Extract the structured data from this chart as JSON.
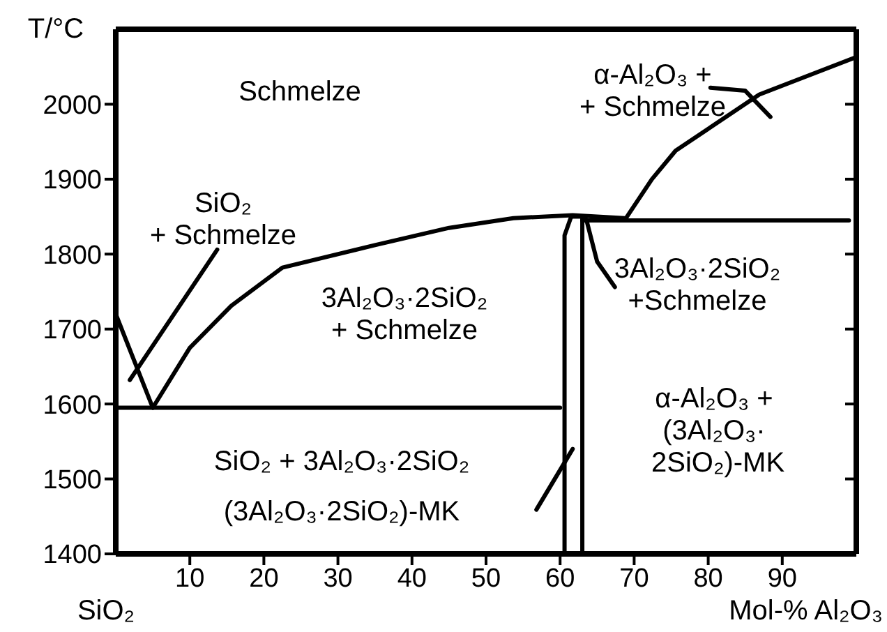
{
  "chart_data": {
    "type": "line",
    "ylabel": "T/°C",
    "xlabel": "Mol-%  Al₂O₃",
    "xlim": [
      0,
      100
    ],
    "ylim": [
      1400,
      2100
    ],
    "xticks": [
      10,
      20,
      30,
      40,
      50,
      60,
      70,
      80,
      90
    ],
    "yticks": [
      1400,
      1500,
      1600,
      1700,
      1800,
      1900,
      2000
    ],
    "marker": "none",
    "line_style": "solid",
    "annotations": [
      "Schmelze",
      "SiO₂\n+ Schmelze",
      "α-Al₂O₃ +\n+ Schmelze",
      "3Al₂O₃·2SiO₂\n+ Schmelze",
      "3Al₂O₃·2SiO₂\n+Schmelze",
      "α-Al₂O₃ +\n(3Al₂O₃·\n 2SiO₂)-MK",
      "SiO₂ + 3Al₂O₃·2SiO₂",
      "(3Al₂O₃·2SiO₂)-MK",
      "SiO₂"
    ],
    "series": [
      {
        "color": "#000000",
        "x": [
          0,
          5
        ],
        "values": [
          1720,
          1595
        ]
      },
      {
        "color": "#000000",
        "x": [
          5,
          10,
          15.6,
          22.5,
          35,
          45,
          53.7,
          61.7,
          68.7
        ],
        "values": [
          1595,
          1675,
          1731,
          1782,
          1812,
          1835,
          1848,
          1852,
          1848
        ]
      },
      {
        "color": "#000000",
        "x": [
          68.7,
          72.4,
          75.6,
          86.9,
          100
        ],
        "values": [
          1845,
          1900,
          1938,
          2013,
          2063
        ]
      },
      {
        "color": "#000000",
        "x": [
          63,
          99
        ],
        "values": [
          1845,
          1845
        ]
      },
      {
        "color": "#000000",
        "x": [
          0,
          60
        ],
        "values": [
          1595,
          1595
        ]
      },
      {
        "color": "#000000",
        "x": [
          60.6,
          60.6,
          61.5
        ],
        "values": [
          1400,
          1825,
          1850
        ]
      },
      {
        "color": "#000000",
        "x": [
          63,
          63
        ],
        "values": [
          1400,
          1850
        ]
      },
      {
        "color": "#000000",
        "x": [
          61.5,
          63.5
        ],
        "values": [
          1850,
          1850
        ]
      },
      {
        "color": "#000000",
        "x": [
          13.7,
          1.9
        ],
        "values": [
          1806,
          1632
        ]
      },
      {
        "color": "#000000",
        "x": [
          80.3,
          85,
          88.4
        ],
        "values": [
          2022,
          2018,
          1983
        ]
      },
      {
        "color": "#000000",
        "x": [
          63.6,
          65,
          67.4
        ],
        "values": [
          1844,
          1790,
          1756
        ]
      },
      {
        "color": "#000000",
        "x": [
          56.8,
          61.7
        ],
        "values": [
          1459,
          1540
        ]
      }
    ]
  }
}
